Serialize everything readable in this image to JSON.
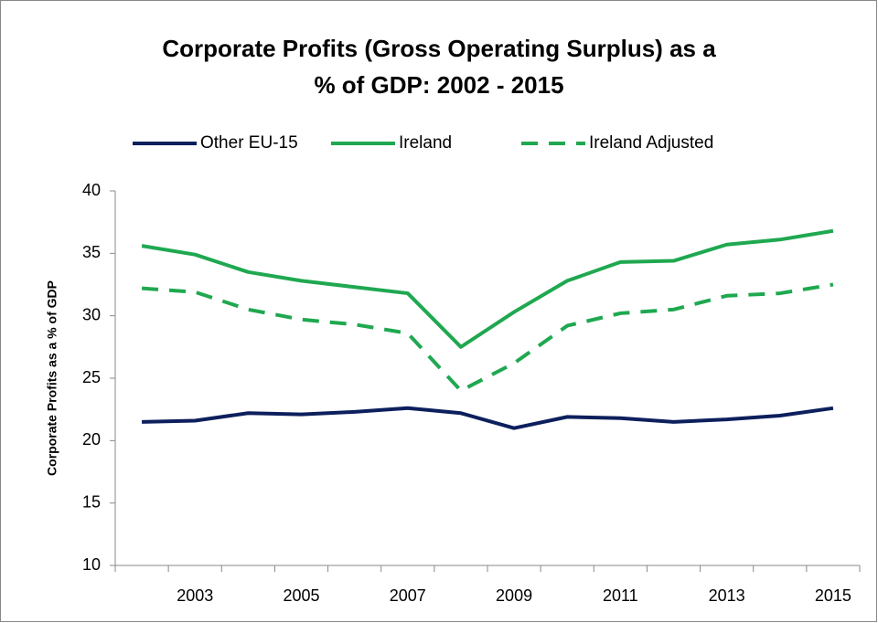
{
  "chart_data": {
    "type": "line",
    "title": [
      "Corporate Profits (Gross Operating Surplus) as a",
      "% of GDP:  2002 - 2015"
    ],
    "y_label": "Corporate Profits as a % of GDP",
    "categories": [
      null,
      "2003",
      null,
      "2005",
      null,
      "2007",
      null,
      "2009",
      null,
      "2011",
      null,
      "2013",
      null,
      "2015"
    ],
    "series": [
      {
        "name": "Other EU-15",
        "color": "#0d1f5c",
        "dashed": false,
        "values": [
          21.5,
          21.6,
          22.2,
          22.1,
          22.3,
          22.6,
          22.2,
          21.0,
          21.9,
          21.8,
          21.5,
          21.7,
          22.0,
          22.6
        ]
      },
      {
        "name": "Ireland",
        "color": "#1fa850",
        "dashed": false,
        "values": [
          35.6,
          34.9,
          33.5,
          32.8,
          32.3,
          31.8,
          27.5,
          30.3,
          32.8,
          34.3,
          34.4,
          35.7,
          36.1,
          36.8
        ]
      },
      {
        "name": "Ireland Adjusted",
        "color": "#1fa850",
        "dashed": true,
        "values": [
          32.2,
          31.9,
          30.5,
          29.7,
          29.3,
          28.6,
          24.0,
          26.2,
          29.2,
          30.2,
          30.5,
          31.6,
          31.8,
          32.5
        ]
      }
    ],
    "ylim": [
      10,
      40
    ],
    "yticks": [
      10,
      15,
      20,
      25,
      30,
      35,
      40
    ],
    "grid": false,
    "legend": "top"
  }
}
